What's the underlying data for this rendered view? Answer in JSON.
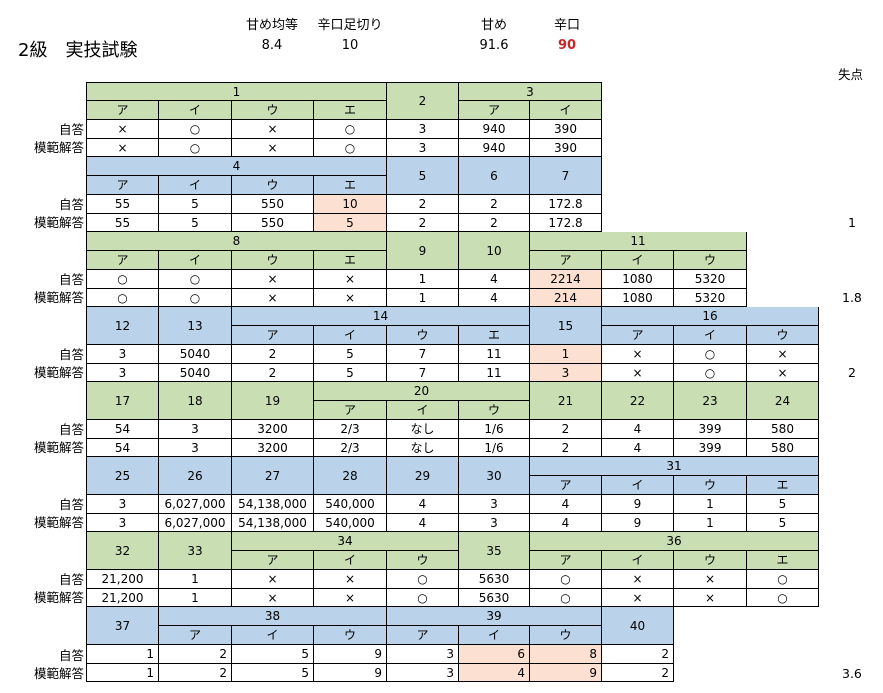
{
  "title": "2級　実技試験",
  "summary": {
    "amame_kinto_label": "甘め均等",
    "amame_kinto_value": "8.4",
    "karakuchi_label": "辛口足切り",
    "karakuchi_value": "10",
    "amame_label": "甘め",
    "amame_value": "91.6",
    "karakuchi_score_label": "辛口",
    "karakuchi_score_value": "90"
  },
  "shitten_label": "失点",
  "row_labels": {
    "jito": "自答",
    "mohan": "模範解答"
  },
  "sub_labels": {
    "a": "ア",
    "i": "イ",
    "u": "ウ",
    "e": "エ"
  },
  "q": {
    "q1": "1",
    "q2": "2",
    "q3": "3",
    "q4": "4",
    "q5": "5",
    "q6": "6",
    "q7": "7",
    "q8": "8",
    "q9": "9",
    "q10": "10",
    "q11": "11",
    "q12": "12",
    "q13": "13",
    "q14": "14",
    "q15": "15",
    "q16": "16",
    "q17": "17",
    "q18": "18",
    "q19": "19",
    "q20": "20",
    "q21": "21",
    "q22": "22",
    "q23": "23",
    "q24": "24",
    "q25": "25",
    "q26": "26",
    "q27": "27",
    "q28": "28",
    "q29": "29",
    "q30": "30",
    "q31": "31",
    "q32": "32",
    "q33": "33",
    "q34": "34",
    "q35": "35",
    "q36": "36",
    "q37": "37",
    "q38": "38",
    "q39": "39",
    "q40": "40"
  },
  "answers": {
    "b1": {
      "jito": [
        "×",
        "○",
        "×",
        "○",
        "3",
        "940",
        "390"
      ],
      "mohan": [
        "×",
        "○",
        "×",
        "○",
        "3",
        "940",
        "390"
      ]
    },
    "b2": {
      "jito": [
        "55",
        "5",
        "550",
        "10",
        "2",
        "2",
        "172.8"
      ],
      "mohan": [
        "55",
        "5",
        "550",
        "5",
        "2",
        "2",
        "172.8"
      ]
    },
    "b3": {
      "jito": [
        "○",
        "○",
        "×",
        "×",
        "1",
        "4",
        "2214",
        "1080",
        "5320"
      ],
      "mohan": [
        "○",
        "○",
        "×",
        "×",
        "1",
        "4",
        "214",
        "1080",
        "5320"
      ]
    },
    "b4": {
      "jito": [
        "3",
        "5040",
        "2",
        "5",
        "7",
        "11",
        "1",
        "×",
        "○",
        "×"
      ],
      "mohan": [
        "3",
        "5040",
        "2",
        "5",
        "7",
        "11",
        "3",
        "×",
        "○",
        "×"
      ]
    },
    "b5": {
      "jito": [
        "54",
        "3",
        "3200",
        "2/3",
        "なし",
        "1/6",
        "2",
        "4",
        "399",
        "580"
      ],
      "mohan": [
        "54",
        "3",
        "3200",
        "2/3",
        "なし",
        "1/6",
        "2",
        "4",
        "399",
        "580"
      ]
    },
    "b6": {
      "jito": [
        "3",
        "6,027,000",
        "54,138,000",
        "540,000",
        "4",
        "3",
        "4",
        "9",
        "1",
        "5"
      ],
      "mohan": [
        "3",
        "6,027,000",
        "54,138,000",
        "540,000",
        "4",
        "3",
        "4",
        "9",
        "1",
        "5"
      ]
    },
    "b7": {
      "jito": [
        "21,200",
        "1",
        "×",
        "×",
        "○",
        "5630",
        "○",
        "×",
        "×",
        "○"
      ],
      "mohan": [
        "21,200",
        "1",
        "×",
        "×",
        "○",
        "5630",
        "○",
        "×",
        "×",
        "○"
      ]
    },
    "b8": {
      "jito": [
        "1",
        "2",
        "5",
        "9",
        "3",
        "6",
        "8",
        "2"
      ],
      "mohan": [
        "1",
        "2",
        "5",
        "9",
        "3",
        "4",
        "9",
        "2"
      ]
    }
  },
  "shitten": {
    "b2": "1",
    "b3": "1.8",
    "b4": "2",
    "b8": "3.6"
  },
  "colors": {
    "green": "#c9dfb3",
    "blue": "#bad3ea",
    "pink": "#fce0d2",
    "red": "#c62828"
  }
}
